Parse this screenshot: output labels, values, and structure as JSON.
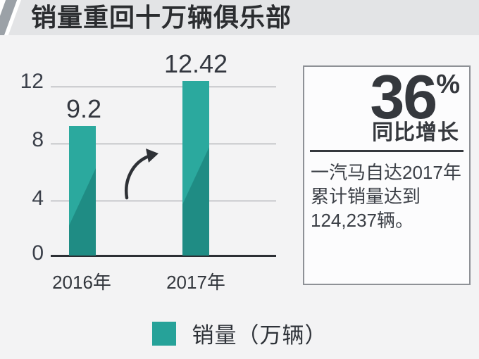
{
  "header": {
    "title": "销量重回十万辆俱乐部"
  },
  "chart_data": {
    "type": "bar",
    "title": "销量重回十万辆俱乐部",
    "categories": [
      "2016年",
      "2017年"
    ],
    "values": [
      9.2,
      12.42
    ],
    "value_labels": [
      "9.2",
      "12.42"
    ],
    "series_name": "销量（万辆）",
    "xlabel": "",
    "ylabel": "",
    "ylim": [
      0,
      12
    ],
    "yticks": [
      "12",
      "8",
      "4",
      "0"
    ],
    "grid": true,
    "legend_position": "bottom",
    "bar_color_light": "#2BA99E",
    "bar_color_dark": "#1F8C84",
    "legend_color": "#26A299",
    "annotation": "curved growth arrow between bars"
  },
  "legend": {
    "label": "销量（万辆）"
  },
  "panel": {
    "percent_value": "36",
    "percent_sign": "%",
    "percent_label": "同比增长",
    "description": "一汽马自达2017年累计销量达到124,237辆。"
  }
}
